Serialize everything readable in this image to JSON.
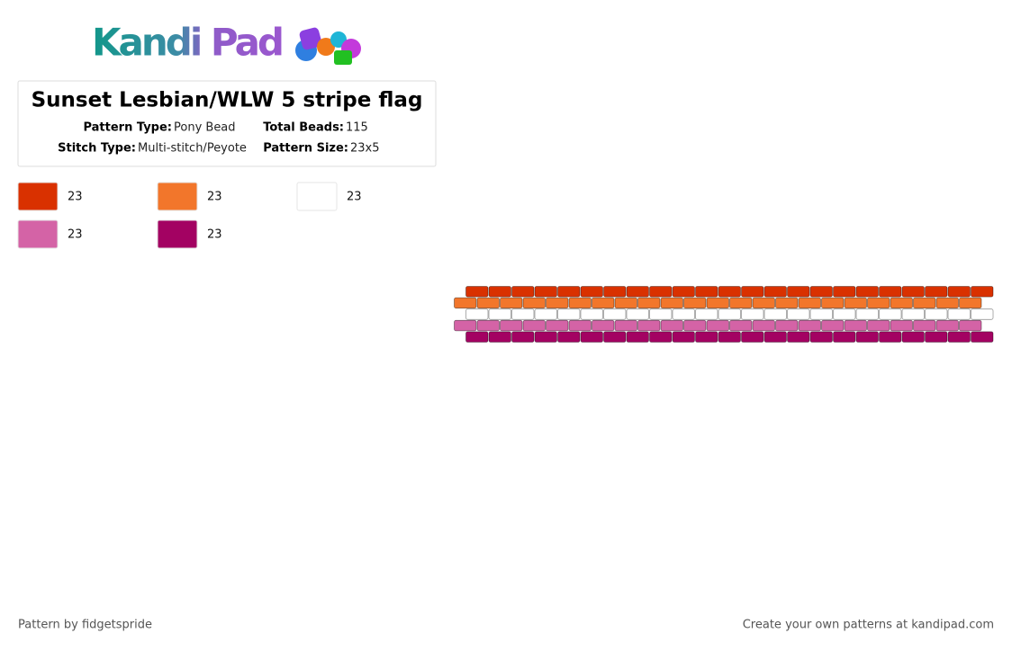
{
  "logo": {
    "text": "Kandi Pad"
  },
  "header": {
    "title": "Sunset Lesbian/WLW 5 stripe flag",
    "fields": [
      {
        "label": "Pattern Type:",
        "value": "Pony Bead"
      },
      {
        "label": "Total Beads:",
        "value": "115"
      },
      {
        "label": "Stitch Type:",
        "value": "Multi-stitch/Peyote"
      },
      {
        "label": "Pattern Size:",
        "value": "23x5"
      }
    ]
  },
  "palette": [
    {
      "color": "#d93100",
      "count": 23
    },
    {
      "color": "#f2762b",
      "count": 23
    },
    {
      "color": "#ffffff",
      "count": 23
    },
    {
      "color": "#d463a6",
      "count": 23
    },
    {
      "color": "#a30262",
      "count": 23
    }
  ],
  "footer": {
    "author": "Pattern by fidgetspride",
    "credit": "Create your own patterns at kandipad.com"
  }
}
